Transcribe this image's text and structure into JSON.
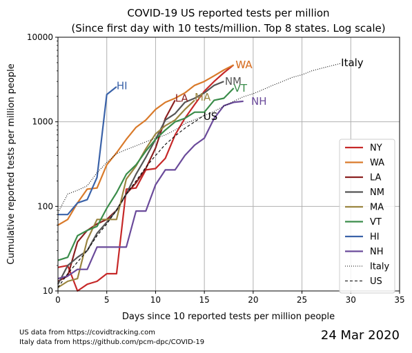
{
  "chart_data": {
    "type": "line",
    "title": "COVID-19 US reported tests per million",
    "subtitle": "(Since first day with 10 tests/million. Top 8 states. Log scale)",
    "xlabel": "Days since 10 reported tests per million people",
    "ylabel": "Cumulative reported tests per million people",
    "xlim": [
      0,
      35
    ],
    "ylim": [
      10,
      10000
    ],
    "yscale": "log",
    "x_ticks": [
      "0",
      "5",
      "10",
      "15",
      "20",
      "25",
      "30",
      "35"
    ],
    "y_ticks": [
      "10",
      "100",
      "1000",
      "10000"
    ],
    "grid": true,
    "legend_position": "right",
    "series": [
      {
        "name": "NY",
        "color": "#c62828",
        "style": "solid",
        "x": [
          0,
          1,
          2,
          3,
          4,
          5,
          6,
          7,
          8,
          9,
          10,
          11,
          12,
          13,
          14,
          15,
          16,
          17,
          18
        ],
        "y": [
          19,
          20,
          10,
          12,
          13,
          16,
          16,
          160,
          165,
          270,
          280,
          370,
          700,
          1100,
          1600,
          2300,
          3000,
          3800,
          4700
        ]
      },
      {
        "name": "WA",
        "color": "#d97a2a",
        "style": "solid",
        "x": [
          0,
          1,
          2,
          3,
          4,
          5,
          6,
          7,
          8,
          9,
          10,
          11,
          12,
          13,
          14,
          15,
          16,
          17,
          18
        ],
        "y": [
          60,
          70,
          110,
          160,
          165,
          310,
          430,
          620,
          860,
          1050,
          1400,
          1700,
          1900,
          2200,
          2700,
          3000,
          3500,
          4100,
          4700
        ]
      },
      {
        "name": "LA",
        "color": "#8b2020",
        "style": "solid",
        "x": [
          0,
          1,
          2,
          3,
          4,
          5,
          6,
          7,
          8,
          9,
          10,
          11,
          12
        ],
        "y": [
          13,
          15,
          38,
          52,
          62,
          70,
          90,
          140,
          190,
          280,
          490,
          1100,
          1800
        ]
      },
      {
        "name": "NM",
        "color": "#555555",
        "style": "solid",
        "x": [
          0,
          1,
          2,
          3,
          4,
          5,
          6,
          7,
          8,
          9,
          10,
          11,
          12,
          13,
          14,
          15,
          16,
          17
        ],
        "y": [
          12,
          20,
          25,
          30,
          48,
          65,
          90,
          140,
          240,
          380,
          620,
          1050,
          1250,
          1700,
          1900,
          2200,
          2700,
          3000
        ]
      },
      {
        "name": "MA",
        "color": "#9a8540",
        "style": "solid",
        "x": [
          0,
          1,
          2,
          3,
          4,
          5,
          6,
          7,
          8,
          9,
          10,
          11,
          12,
          13,
          14
        ],
        "y": [
          11,
          13,
          14,
          40,
          70,
          70,
          70,
          210,
          300,
          480,
          720,
          900,
          1050,
          1400,
          1800
        ]
      },
      {
        "name": "VT",
        "color": "#3a8c4a",
        "style": "solid",
        "x": [
          0,
          1,
          2,
          3,
          4,
          5,
          6,
          7,
          8,
          9,
          10,
          11,
          12,
          13,
          14,
          15,
          16,
          17,
          18
        ],
        "y": [
          23,
          25,
          45,
          52,
          58,
          95,
          145,
          240,
          310,
          450,
          620,
          800,
          1000,
          1100,
          1300,
          1300,
          1800,
          1900,
          2500
        ]
      },
      {
        "name": "HI",
        "color": "#3a62a8",
        "style": "solid",
        "x": [
          0,
          1,
          2,
          3,
          4,
          5,
          6
        ],
        "y": [
          80,
          80,
          110,
          120,
          220,
          2100,
          2600
        ]
      },
      {
        "name": "NH",
        "color": "#6a4a9a",
        "style": "solid",
        "x": [
          0,
          1,
          2,
          3,
          4,
          5,
          6,
          7,
          8,
          9,
          10,
          11,
          12,
          13,
          14,
          15,
          16,
          17,
          18,
          19
        ],
        "y": [
          14,
          15,
          18,
          18,
          33,
          33,
          33,
          33,
          88,
          88,
          180,
          270,
          270,
          400,
          530,
          640,
          1100,
          1550,
          1700,
          1750
        ]
      },
      {
        "name": "Italy",
        "color": "#000000",
        "style": "dotted",
        "x": [
          0,
          1,
          2,
          3,
          4,
          5,
          6,
          7,
          8,
          9,
          10,
          11,
          12,
          13,
          14,
          15,
          16,
          17,
          18,
          19,
          20,
          21,
          22,
          23,
          24,
          25,
          26,
          27,
          28,
          29
        ],
        "y": [
          84,
          140,
          155,
          175,
          250,
          330,
          420,
          470,
          520,
          580,
          640,
          700,
          800,
          950,
          1060,
          1180,
          1330,
          1530,
          1750,
          1980,
          2150,
          2400,
          2700,
          3000,
          3350,
          3600,
          4000,
          4300,
          4600,
          4900
        ]
      },
      {
        "name": "US",
        "color": "#000000",
        "style": "dashed",
        "x": [
          0,
          1,
          2,
          3,
          4,
          5,
          6,
          7,
          8,
          9,
          10,
          11,
          12,
          13,
          14,
          15
        ],
        "y": [
          11,
          16,
          22,
          30,
          45,
          62,
          90,
          140,
          200,
          290,
          400,
          540,
          680,
          840,
          1000,
          1200
        ]
      }
    ],
    "annotations": [
      {
        "text": "WA",
        "series": "NY",
        "x": 18.2,
        "y": 4700
      },
      {
        "text": "WA",
        "series": "WA",
        "x": 18.2,
        "y": 4700
      },
      {
        "text": "LA",
        "series": "LA",
        "x": 12.0,
        "y": 1900
      },
      {
        "text": "NM",
        "series": "NM",
        "x": 17.1,
        "y": 3000
      },
      {
        "text": "MA",
        "series": "MA",
        "x": 14.0,
        "y": 1950
      },
      {
        "text": "VT",
        "series": "VT",
        "x": 18.0,
        "y": 2500
      },
      {
        "text": "HI",
        "series": "HI",
        "x": 6.0,
        "y": 2650
      },
      {
        "text": "NH",
        "series": "NH",
        "x": 19.8,
        "y": 1750
      },
      {
        "text": "Italy",
        "series": "Italy",
        "x": 29.0,
        "y": 5000
      },
      {
        "text": "US",
        "series": "US",
        "x": 14.9,
        "y": 1150
      }
    ]
  },
  "footnotes": {
    "us_source": "US data from https://covidtracking.com",
    "italy_source": "Italy data from https://github.com/pcm-dpc/COVID-19"
  },
  "date_label": "24 Mar 2020"
}
